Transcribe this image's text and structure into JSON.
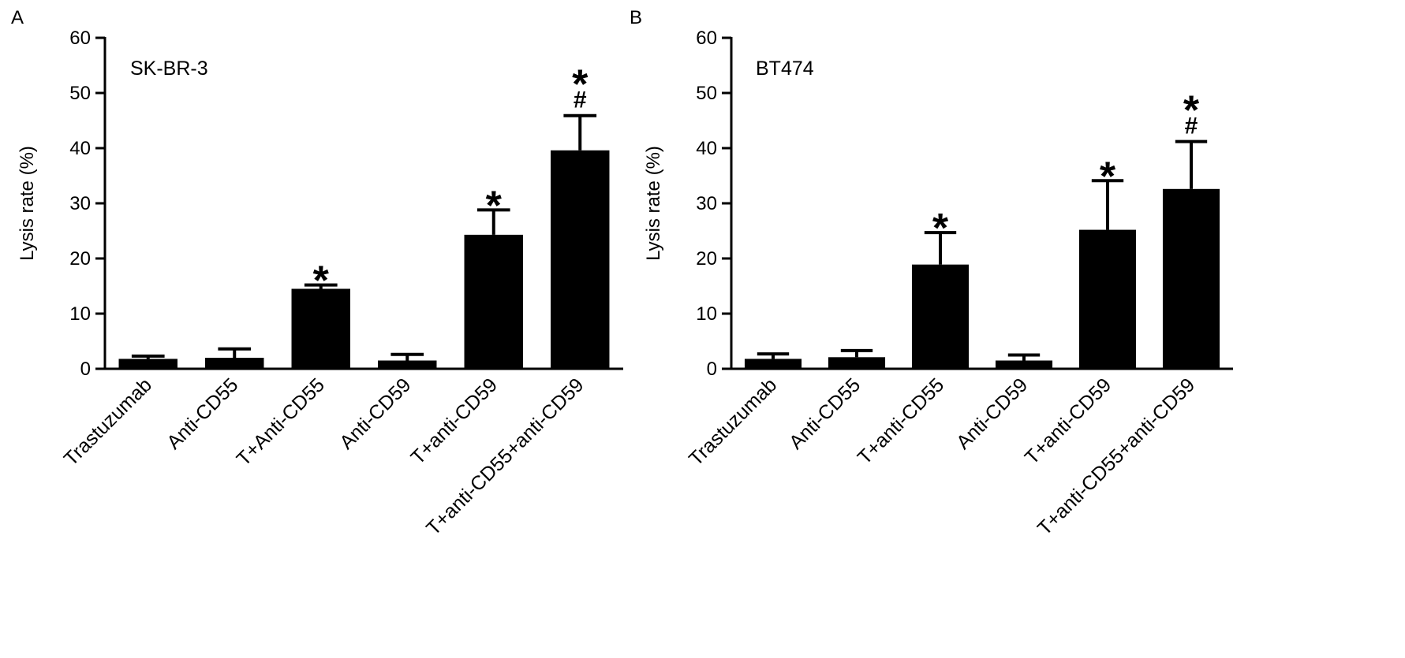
{
  "chart_data": [
    {
      "panel_label": "A",
      "type": "bar",
      "title": "SK-BR-3",
      "xlabel": "",
      "ylabel": "Lysis rate (%)",
      "ylim": [
        0,
        60
      ],
      "yticks": [
        0,
        10,
        20,
        30,
        40,
        50,
        60
      ],
      "grid": false,
      "categories": [
        "Trastuzumab",
        "Anti-CD55",
        "T+Anti-CD55",
        "Anti-CD59",
        "T+anti-CD59",
        "T+anti-CD55+anti-CD59"
      ],
      "values": [
        1.8,
        2.0,
        14.5,
        1.5,
        24.3,
        39.6
      ],
      "errors": [
        0.5,
        1.6,
        0.7,
        1.1,
        4.5,
        6.3
      ],
      "annotations": [
        [],
        [],
        [
          "*"
        ],
        [],
        [
          "*"
        ],
        [
          "#",
          "*"
        ]
      ],
      "bar_color": "#000000"
    },
    {
      "panel_label": "B",
      "type": "bar",
      "title": "BT474",
      "xlabel": "",
      "ylabel": "Lysis rate (%)",
      "ylim": [
        0,
        60
      ],
      "yticks": [
        0,
        10,
        20,
        30,
        40,
        50,
        60
      ],
      "grid": false,
      "categories": [
        "Trastuzumab",
        "Anti-CD55",
        "T+anti-CD55",
        "Anti-CD59",
        "T+anti-CD59",
        "T+anti-CD55+anti-CD59"
      ],
      "values": [
        1.8,
        2.1,
        18.9,
        1.5,
        25.2,
        32.6
      ],
      "errors": [
        0.9,
        1.2,
        5.8,
        1.0,
        8.9,
        8.6
      ],
      "annotations": [
        [],
        [],
        [
          "*"
        ],
        [],
        [
          "*"
        ],
        [
          "#",
          "*"
        ]
      ],
      "bar_color": "#000000"
    }
  ]
}
